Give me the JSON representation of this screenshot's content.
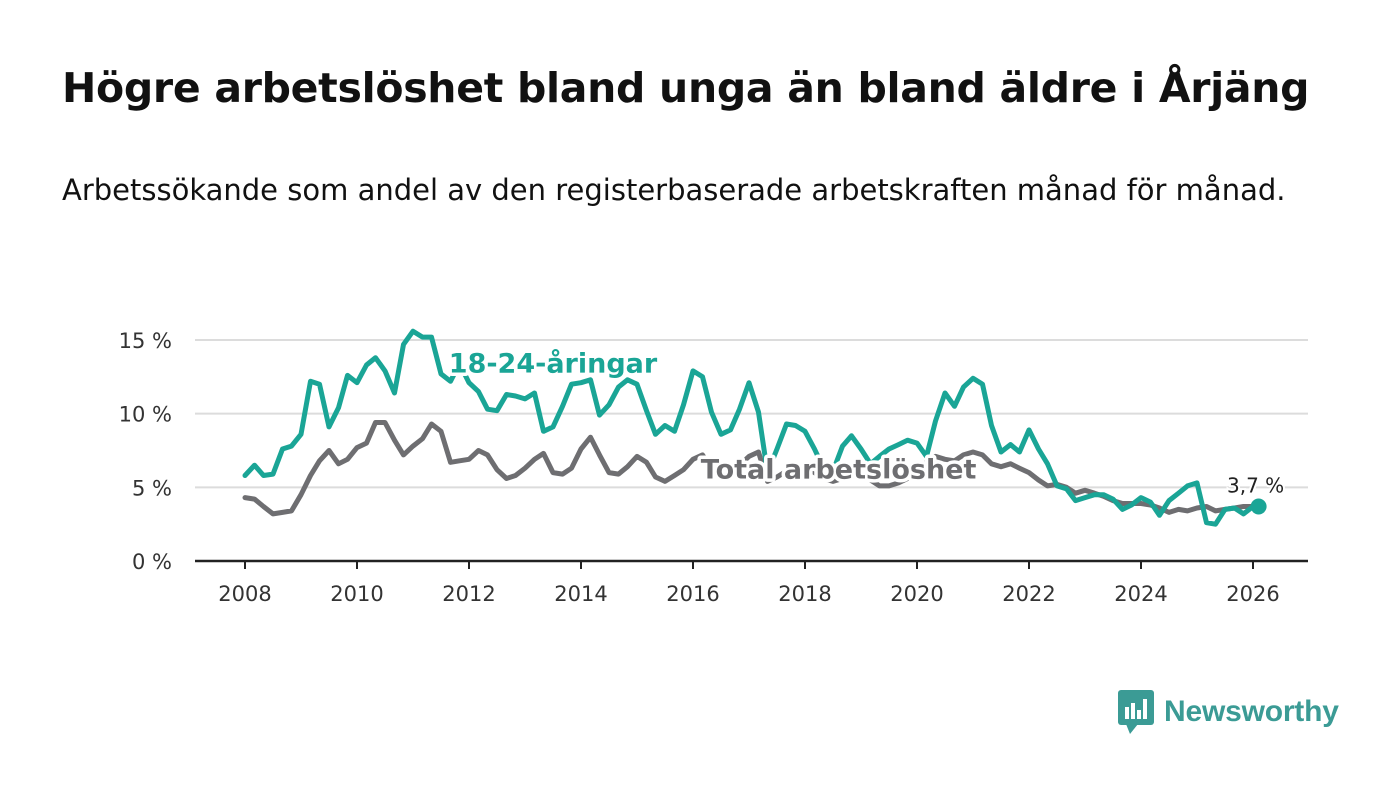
{
  "header": {
    "title": "Högre arbetslöshet bland unga än bland äldre i Årjäng",
    "subtitle": "Arbetssökande som andel av den registerbaserade arbetskraften månad för månad."
  },
  "brand": {
    "name": "Newsworthy",
    "color": "#3b9b95",
    "icon": "bar-chart-speech-bubble-icon"
  },
  "chart_data": {
    "type": "line",
    "x_unit": "decimal year (monthly observations)",
    "ylim": [
      0,
      15
    ],
    "xlim": [
      2008,
      2026
    ],
    "y_ticks": [
      {
        "value": 0,
        "label": "0 %"
      },
      {
        "value": 5,
        "label": "5 %"
      },
      {
        "value": 10,
        "label": "10 %"
      },
      {
        "value": 15,
        "label": "15 %"
      }
    ],
    "x_ticks": [
      {
        "value": 2008,
        "label": "2008"
      },
      {
        "value": 2010,
        "label": "2010"
      },
      {
        "value": 2012,
        "label": "2012"
      },
      {
        "value": 2014,
        "label": "2014"
      },
      {
        "value": 2016,
        "label": "2016"
      },
      {
        "value": 2018,
        "label": "2018"
      },
      {
        "value": 2020,
        "label": "2020"
      },
      {
        "value": 2022,
        "label": "2022"
      },
      {
        "value": 2024,
        "label": "2024"
      },
      {
        "value": 2026,
        "label": "2026"
      }
    ],
    "grid": true,
    "series": [
      {
        "name": "Total arbetslöshet",
        "color": "#6e6e71",
        "label_at": 2018.6,
        "points": [
          [
            2008.0,
            4.3
          ],
          [
            2008.17,
            4.2
          ],
          [
            2008.33,
            3.7
          ],
          [
            2008.5,
            3.2
          ],
          [
            2008.67,
            3.3
          ],
          [
            2008.83,
            3.4
          ],
          [
            2009.0,
            4.5
          ],
          [
            2009.17,
            5.8
          ],
          [
            2009.33,
            6.8
          ],
          [
            2009.5,
            7.5
          ],
          [
            2009.67,
            6.6
          ],
          [
            2009.83,
            6.9
          ],
          [
            2010.0,
            7.7
          ],
          [
            2010.17,
            8.0
          ],
          [
            2010.33,
            9.4
          ],
          [
            2010.5,
            9.4
          ],
          [
            2010.67,
            8.2
          ],
          [
            2010.83,
            7.2
          ],
          [
            2011.0,
            7.8
          ],
          [
            2011.17,
            8.3
          ],
          [
            2011.33,
            9.3
          ],
          [
            2011.5,
            8.8
          ],
          [
            2011.67,
            6.7
          ],
          [
            2011.83,
            6.8
          ],
          [
            2012.0,
            6.9
          ],
          [
            2012.17,
            7.5
          ],
          [
            2012.33,
            7.2
          ],
          [
            2012.5,
            6.2
          ],
          [
            2012.67,
            5.6
          ],
          [
            2012.83,
            5.8
          ],
          [
            2013.0,
            6.3
          ],
          [
            2013.17,
            6.9
          ],
          [
            2013.33,
            7.3
          ],
          [
            2013.5,
            6.0
          ],
          [
            2013.67,
            5.9
          ],
          [
            2013.83,
            6.3
          ],
          [
            2014.0,
            7.6
          ],
          [
            2014.17,
            8.4
          ],
          [
            2014.33,
            7.2
          ],
          [
            2014.5,
            6.0
          ],
          [
            2014.67,
            5.9
          ],
          [
            2014.83,
            6.4
          ],
          [
            2015.0,
            7.1
          ],
          [
            2015.17,
            6.7
          ],
          [
            2015.33,
            5.7
          ],
          [
            2015.5,
            5.4
          ],
          [
            2015.67,
            5.8
          ],
          [
            2015.83,
            6.2
          ],
          [
            2016.0,
            6.9
          ],
          [
            2016.17,
            7.2
          ],
          [
            2016.33,
            6.3
          ],
          [
            2016.5,
            6.0
          ],
          [
            2016.67,
            6.3
          ],
          [
            2016.83,
            6.5
          ],
          [
            2017.0,
            7.1
          ],
          [
            2017.17,
            7.4
          ],
          [
            2017.33,
            5.4
          ],
          [
            2017.5,
            5.7
          ],
          [
            2017.67,
            6.1
          ],
          [
            2017.83,
            6.3
          ],
          [
            2018.0,
            6.5
          ],
          [
            2018.17,
            6.0
          ],
          [
            2018.33,
            5.6
          ],
          [
            2018.5,
            5.4
          ],
          [
            2018.67,
            5.6
          ],
          [
            2018.83,
            5.8
          ],
          [
            2019.0,
            5.8
          ],
          [
            2019.17,
            5.5
          ],
          [
            2019.33,
            5.1
          ],
          [
            2019.5,
            5.1
          ],
          [
            2019.67,
            5.3
          ],
          [
            2019.83,
            5.6
          ],
          [
            2020.0,
            6.1
          ],
          [
            2020.17,
            6.7
          ],
          [
            2020.33,
            7.1
          ],
          [
            2020.5,
            6.9
          ],
          [
            2020.67,
            6.8
          ],
          [
            2020.83,
            7.2
          ],
          [
            2021.0,
            7.4
          ],
          [
            2021.17,
            7.2
          ],
          [
            2021.33,
            6.6
          ],
          [
            2021.5,
            6.4
          ],
          [
            2021.67,
            6.6
          ],
          [
            2021.83,
            6.3
          ],
          [
            2022.0,
            6.0
          ],
          [
            2022.17,
            5.5
          ],
          [
            2022.33,
            5.1
          ],
          [
            2022.5,
            5.2
          ],
          [
            2022.67,
            5.0
          ],
          [
            2022.83,
            4.6
          ],
          [
            2023.0,
            4.8
          ],
          [
            2023.17,
            4.6
          ],
          [
            2023.33,
            4.4
          ],
          [
            2023.5,
            4.1
          ],
          [
            2023.67,
            3.9
          ],
          [
            2023.83,
            3.9
          ],
          [
            2024.0,
            3.9
          ],
          [
            2024.17,
            3.8
          ],
          [
            2024.33,
            3.6
          ],
          [
            2024.5,
            3.3
          ],
          [
            2024.67,
            3.5
          ],
          [
            2024.83,
            3.4
          ],
          [
            2025.0,
            3.6
          ],
          [
            2025.17,
            3.7
          ],
          [
            2025.33,
            3.4
          ],
          [
            2025.5,
            3.5
          ],
          [
            2025.67,
            3.6
          ],
          [
            2025.83,
            3.7
          ],
          [
            2026.0,
            3.7
          ]
        ]
      },
      {
        "name": "18-24-åringar",
        "color": "#1aa596",
        "label_at": 2013.5,
        "points": [
          [
            2008.0,
            5.8
          ],
          [
            2008.17,
            6.5
          ],
          [
            2008.33,
            5.8
          ],
          [
            2008.5,
            5.9
          ],
          [
            2008.67,
            7.6
          ],
          [
            2008.83,
            7.8
          ],
          [
            2009.0,
            8.6
          ],
          [
            2009.17,
            12.2
          ],
          [
            2009.33,
            12.0
          ],
          [
            2009.5,
            9.1
          ],
          [
            2009.67,
            10.4
          ],
          [
            2009.83,
            12.6
          ],
          [
            2010.0,
            12.1
          ],
          [
            2010.17,
            13.3
          ],
          [
            2010.33,
            13.8
          ],
          [
            2010.5,
            12.9
          ],
          [
            2010.67,
            11.4
          ],
          [
            2010.83,
            14.7
          ],
          [
            2011.0,
            15.6
          ],
          [
            2011.17,
            15.2
          ],
          [
            2011.33,
            15.2
          ],
          [
            2011.5,
            12.7
          ],
          [
            2011.67,
            12.2
          ],
          [
            2011.83,
            13.4
          ],
          [
            2012.0,
            12.1
          ],
          [
            2012.17,
            11.5
          ],
          [
            2012.33,
            10.3
          ],
          [
            2012.5,
            10.2
          ],
          [
            2012.67,
            11.3
          ],
          [
            2012.83,
            11.2
          ],
          [
            2013.0,
            11.0
          ],
          [
            2013.17,
            11.4
          ],
          [
            2013.33,
            8.8
          ],
          [
            2013.5,
            9.1
          ],
          [
            2013.67,
            10.5
          ],
          [
            2013.83,
            12.0
          ],
          [
            2014.0,
            12.1
          ],
          [
            2014.17,
            12.3
          ],
          [
            2014.33,
            9.9
          ],
          [
            2014.5,
            10.6
          ],
          [
            2014.67,
            11.8
          ],
          [
            2014.83,
            12.3
          ],
          [
            2015.0,
            12.0
          ],
          [
            2015.17,
            10.2
          ],
          [
            2015.33,
            8.6
          ],
          [
            2015.5,
            9.2
          ],
          [
            2015.67,
            8.8
          ],
          [
            2015.83,
            10.6
          ],
          [
            2016.0,
            12.9
          ],
          [
            2016.17,
            12.5
          ],
          [
            2016.33,
            10.1
          ],
          [
            2016.5,
            8.6
          ],
          [
            2016.67,
            8.9
          ],
          [
            2016.83,
            10.3
          ],
          [
            2017.0,
            12.1
          ],
          [
            2017.17,
            10.1
          ],
          [
            2017.33,
            6.0
          ],
          [
            2017.5,
            7.6
          ],
          [
            2017.67,
            9.3
          ],
          [
            2017.83,
            9.2
          ],
          [
            2018.0,
            8.8
          ],
          [
            2018.17,
            7.6
          ],
          [
            2018.33,
            6.3
          ],
          [
            2018.5,
            6.1
          ],
          [
            2018.67,
            7.8
          ],
          [
            2018.83,
            8.5
          ],
          [
            2019.0,
            7.6
          ],
          [
            2019.17,
            6.6
          ],
          [
            2019.33,
            7.1
          ],
          [
            2019.5,
            7.6
          ],
          [
            2019.67,
            7.9
          ],
          [
            2019.83,
            8.2
          ],
          [
            2020.0,
            8.0
          ],
          [
            2020.17,
            7.1
          ],
          [
            2020.33,
            9.5
          ],
          [
            2020.5,
            11.4
          ],
          [
            2020.67,
            10.5
          ],
          [
            2020.83,
            11.8
          ],
          [
            2021.0,
            12.4
          ],
          [
            2021.17,
            12.0
          ],
          [
            2021.33,
            9.2
          ],
          [
            2021.5,
            7.4
          ],
          [
            2021.67,
            7.9
          ],
          [
            2021.83,
            7.4
          ],
          [
            2022.0,
            8.9
          ],
          [
            2022.17,
            7.6
          ],
          [
            2022.33,
            6.6
          ],
          [
            2022.5,
            5.1
          ],
          [
            2022.67,
            4.9
          ],
          [
            2022.83,
            4.1
          ],
          [
            2023.0,
            4.3
          ],
          [
            2023.17,
            4.5
          ],
          [
            2023.33,
            4.5
          ],
          [
            2023.5,
            4.2
          ],
          [
            2023.67,
            3.5
          ],
          [
            2023.83,
            3.8
          ],
          [
            2024.0,
            4.3
          ],
          [
            2024.17,
            4.0
          ],
          [
            2024.33,
            3.1
          ],
          [
            2024.5,
            4.1
          ],
          [
            2024.67,
            4.6
          ],
          [
            2024.83,
            5.1
          ],
          [
            2025.0,
            5.3
          ],
          [
            2025.17,
            2.6
          ],
          [
            2025.33,
            2.5
          ],
          [
            2025.5,
            3.5
          ],
          [
            2025.67,
            3.6
          ],
          [
            2025.83,
            3.2
          ],
          [
            2026.0,
            3.7
          ]
        ]
      }
    ],
    "end_marker": {
      "series": "18-24-åringar",
      "x": 2026.1,
      "y": 3.7,
      "label": "3,7 %"
    }
  }
}
